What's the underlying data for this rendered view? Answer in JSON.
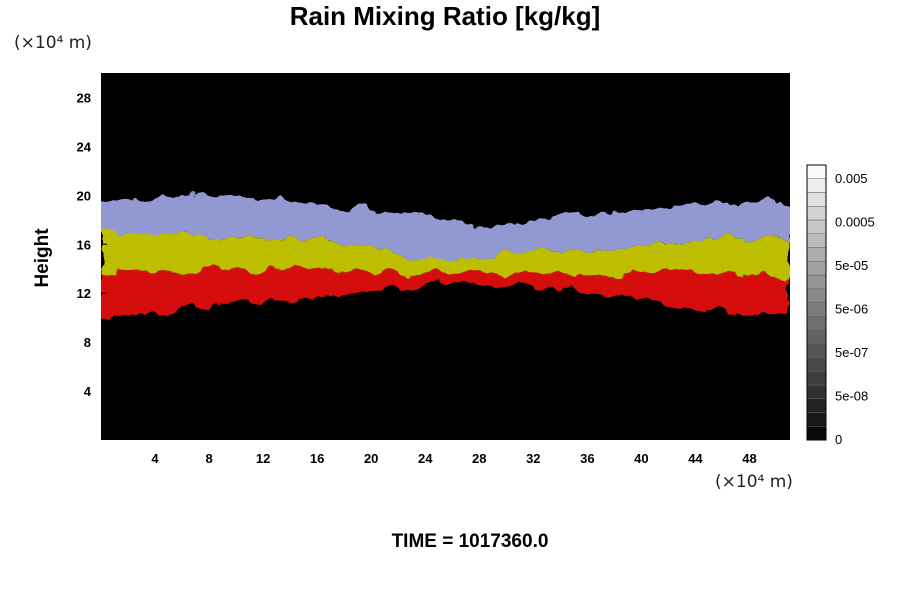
{
  "chart_data": {
    "type": "heatmap",
    "title": "Rain Mixing Ratio [kg/kg]",
    "xlabel": "",
    "ylabel": "Height",
    "x_unit": "(×10⁴ m)",
    "y_unit": "(×10⁴ m)",
    "xlim": [
      0,
      51
    ],
    "ylim": [
      0,
      30
    ],
    "x_ticks": [
      4,
      8,
      12,
      16,
      20,
      24,
      28,
      32,
      36,
      40,
      44,
      48
    ],
    "y_ticks": [
      4,
      8,
      12,
      16,
      20,
      24,
      28
    ],
    "background_color": "#000000",
    "colorbar": {
      "labels": [
        "0.005",
        "0.0005",
        "5e-05",
        "5e-06",
        "5e-07",
        "5e-08",
        "0"
      ],
      "levels": 20
    },
    "layers": [
      {
        "color": "#e01010",
        "x_start": 0,
        "x_end": 51,
        "bottom": [
          10,
          10.5,
          11,
          11.5,
          12,
          12.5,
          12.8,
          12.5,
          12,
          11,
          10.5,
          10
        ],
        "top": [
          13.5,
          13.8,
          14,
          14,
          14,
          13.5,
          13.5,
          13.8,
          13.5,
          13.8,
          13.5,
          13.5
        ]
      },
      {
        "color": "#c8c800",
        "x_start": 0,
        "x_end": 51,
        "bottom": [
          13.5,
          13.8,
          14,
          14,
          14,
          13.5,
          13.5,
          13.8,
          13.5,
          13.8,
          13.5,
          13.5
        ],
        "top": [
          17,
          17,
          16.5,
          16.5,
          16,
          15,
          15,
          15.5,
          15.5,
          16,
          16.5,
          16.5
        ]
      },
      {
        "color": "#9aa0dc",
        "x_start": 0,
        "x_end": 51,
        "bottom": [
          17,
          17,
          16.5,
          16.5,
          16,
          15,
          15,
          15.5,
          15.5,
          16,
          16.5,
          16.5
        ],
        "top": [
          19.5,
          19.8,
          20,
          19.5,
          19,
          18.5,
          17.5,
          18,
          18.5,
          19,
          19.5,
          19.5
        ]
      }
    ]
  },
  "time_label": "TIME = 1017360.0"
}
